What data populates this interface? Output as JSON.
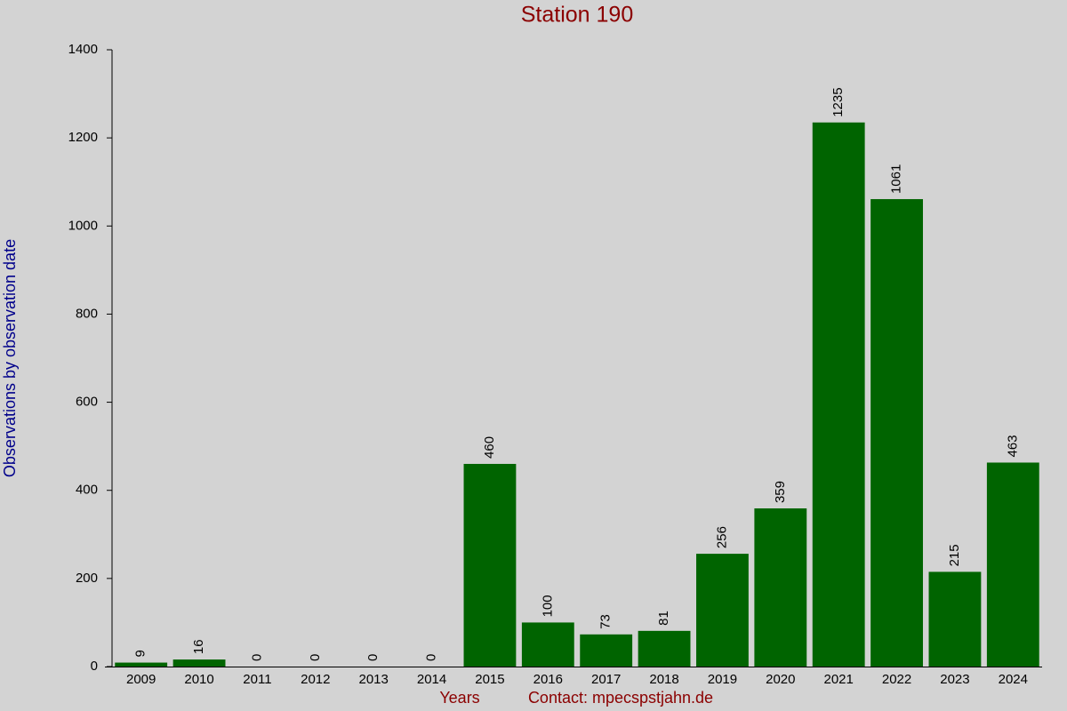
{
  "chart_data": {
    "type": "bar",
    "title": "Station 190",
    "y_label": "Observations by observation date",
    "x_label": "Years",
    "note": "Contact: mpecspstjahn.de",
    "categories": [
      "2009",
      "2010",
      "2011",
      "2012",
      "2013",
      "2014",
      "2015",
      "2016",
      "2017",
      "2018",
      "2019",
      "2020",
      "2021",
      "2022",
      "2023",
      "2024"
    ],
    "values": [
      9,
      16,
      0,
      0,
      0,
      0,
      460,
      100,
      73,
      81,
      256,
      359,
      1235,
      1061,
      215,
      463
    ],
    "color": "#006400",
    "ylim": [
      0,
      1400
    ],
    "yticks": [
      0,
      200,
      400,
      600,
      800,
      1000,
      1200,
      1400
    ],
    "grid": false
  }
}
